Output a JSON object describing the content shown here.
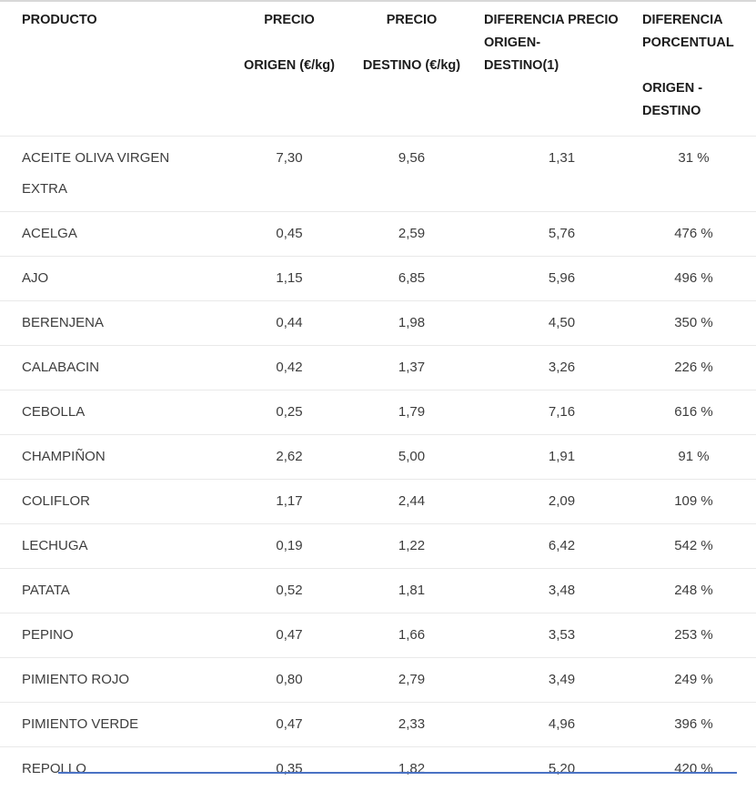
{
  "chart_data": {
    "type": "table",
    "columns": [
      "PRODUCTO",
      "PRECIO\n\nORIGEN (€/kg)",
      "PRECIO\n\nDESTINO (€/kg)",
      "DIFERENCIA PRECIO\nORIGEN-\nDESTINO(1)",
      "DIFERENCIA\nPORCENTUAL\n\nORIGEN -\nDESTINO"
    ],
    "rows": [
      [
        "ACEITE OLIVA VIRGEN EXTRA",
        "7,30",
        "9,56",
        "1,31",
        "31 %"
      ],
      [
        "ACELGA",
        "0,45",
        "2,59",
        "5,76",
        "476 %"
      ],
      [
        "AJO",
        "1,15",
        "6,85",
        "5,96",
        "496 %"
      ],
      [
        "BERENJENA",
        "0,44",
        "1,98",
        "4,50",
        "350 %"
      ],
      [
        "CALABACIN",
        "0,42",
        "1,37",
        "3,26",
        "226 %"
      ],
      [
        "CEBOLLA",
        "0,25",
        "1,79",
        "7,16",
        "616 %"
      ],
      [
        "CHAMPIÑON",
        "2,62",
        "5,00",
        "1,91",
        "91 %"
      ],
      [
        "COLIFLOR",
        "1,17",
        "2,44",
        "2,09",
        "109 %"
      ],
      [
        "LECHUGA",
        "0,19",
        "1,22",
        "6,42",
        "542 %"
      ],
      [
        "PATATA",
        "0,52",
        "1,81",
        "3,48",
        "248 %"
      ],
      [
        "PEPINO",
        "0,47",
        "1,66",
        "3,53",
        "253 %"
      ],
      [
        "PIMIENTO ROJO",
        "0,80",
        "2,79",
        "3,49",
        "249 %"
      ],
      [
        "PIMIENTO VERDE",
        "0,47",
        "2,33",
        "4,96",
        "396 %"
      ],
      [
        "REPOLLO",
        "0,35",
        "1,82",
        "5,20",
        "420 %"
      ]
    ]
  },
  "colors": {
    "header_text": "#1c1c1c",
    "body_text": "#3d3d3d",
    "row_separator": "#e9e9e9",
    "top_border": "#d8d8d8",
    "clipped_element_blue": "#4a72c4"
  }
}
